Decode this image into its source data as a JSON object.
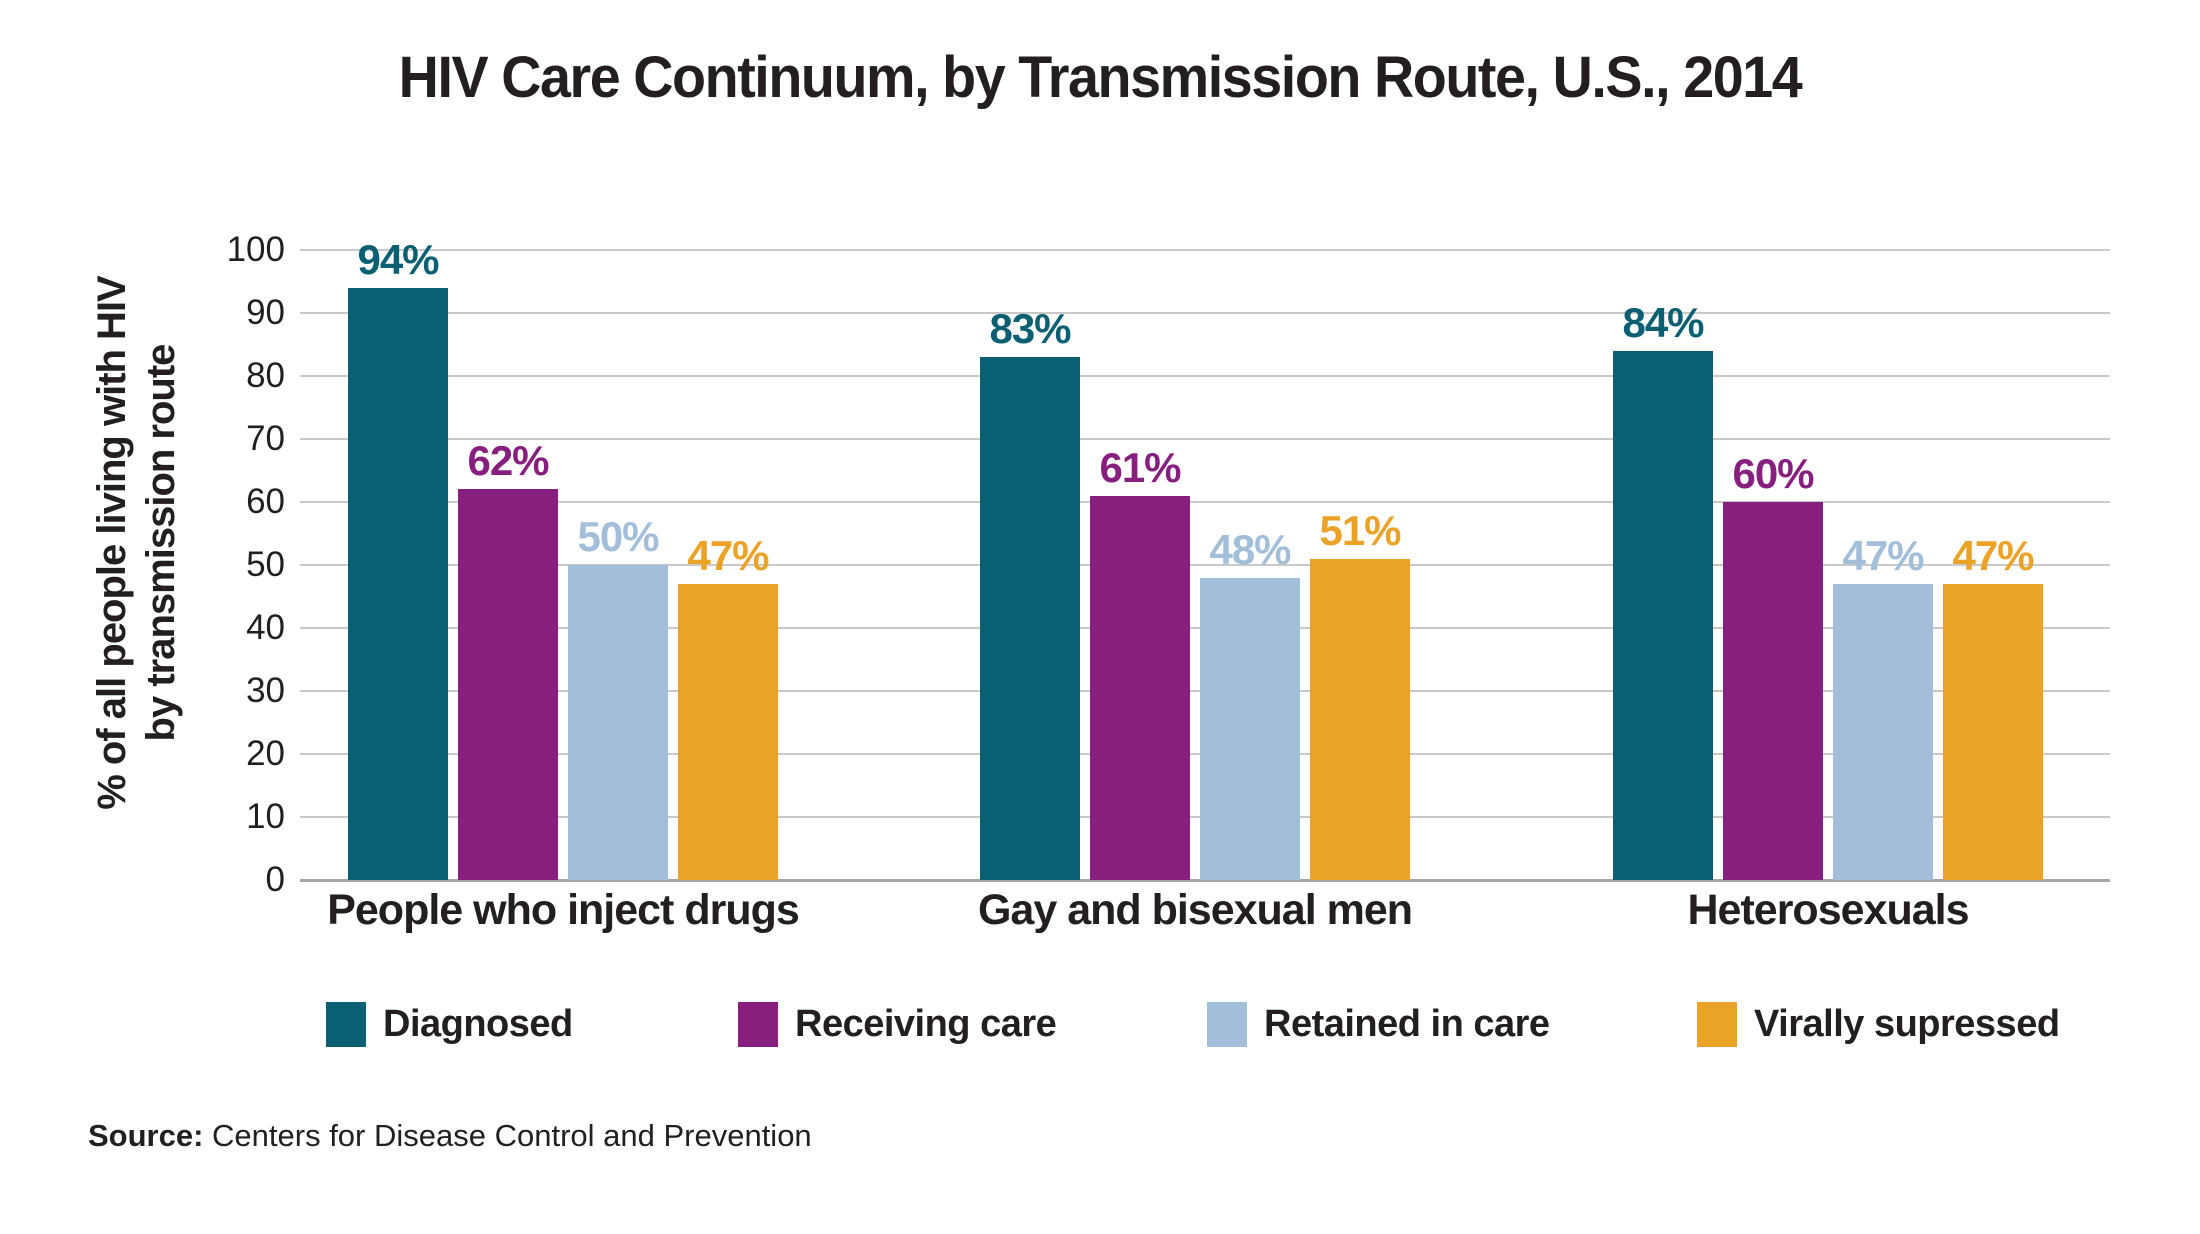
{
  "title": "HIV Care Continuum, by Transmission Route, U.S., 2014",
  "y_axis": {
    "label_line1": "% of all people living with HIV",
    "label_line2": "by transmission route",
    "ticks": [
      100,
      90,
      80,
      70,
      60,
      50,
      40,
      30,
      20,
      10,
      0
    ]
  },
  "source": {
    "prefix": "Source:",
    "text": " Centers for Disease Control and Prevention"
  },
  "colors": {
    "teal": "#0a5f72",
    "purple": "#871f7f",
    "light_blue": "#a2bed9",
    "orange": "#eaa227",
    "gridline": "#c9c9c9",
    "axis_line": "#a6a6a8",
    "text": "#231f20"
  },
  "chart_data": {
    "type": "bar",
    "title": "HIV Care Continuum, by Transmission Route, U.S., 2014",
    "xlabel": "",
    "ylabel": "% of all people living with HIV by transmission route",
    "ylim": [
      0,
      100
    ],
    "grid": true,
    "legend_position": "bottom",
    "value_label_suffix": "%",
    "categories": [
      "People who inject drugs",
      "Gay and bisexual men",
      "Heterosexuals"
    ],
    "series": [
      {
        "name": "Diagnosed",
        "color": "#0a5f72",
        "values": [
          94,
          83,
          84
        ]
      },
      {
        "name": "Receiving care",
        "color": "#871f7f",
        "values": [
          62,
          61,
          60
        ]
      },
      {
        "name": "Retained in care",
        "color": "#a2bed9",
        "values": [
          50,
          48,
          47
        ]
      },
      {
        "name": "Virally supressed",
        "color": "#eaa227",
        "values": [
          47,
          51,
          47
        ]
      }
    ]
  }
}
